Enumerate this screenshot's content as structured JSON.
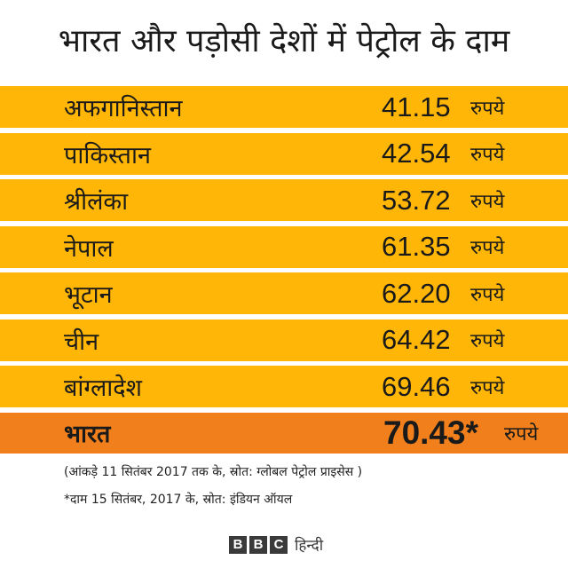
{
  "title": "भारत और पड़ोसी देशों में पेट्रोल के दाम",
  "rows": [
    {
      "country": "अफगानिस्तान",
      "price": "41.15",
      "unit": "रुपये"
    },
    {
      "country": "पाकिस्तान",
      "price": "42.54",
      "unit": "रुपये"
    },
    {
      "country": "श्रीलंका",
      "price": "53.72",
      "unit": "रुपये"
    },
    {
      "country": "नेपाल",
      "price": "61.35",
      "unit": "रुपये"
    },
    {
      "country": "भूटान",
      "price": "62.20",
      "unit": "रुपये"
    },
    {
      "country": "चीन",
      "price": "64.42",
      "unit": "रुपये"
    },
    {
      "country": "बांग्लादेश",
      "price": "69.46",
      "unit": "रुपये"
    },
    {
      "country": "भारत",
      "price": "70.43*",
      "unit": "रुपये"
    }
  ],
  "notes": {
    "data_source": "(आंकड़े 11 सितंबर 2017 तक के, स्रोत: ग्लोबल पेट्रोल प्राइसेस )",
    "price_note": "*दाम 15 सितंबर, 2017 के, स्रोत: इंडियन ऑयल"
  },
  "brand": {
    "letters": [
      "B",
      "B",
      "C"
    ],
    "language": "हिन्दी"
  },
  "colors": {
    "row": "#ffb606",
    "highlight_row": "#f07f1c"
  }
}
